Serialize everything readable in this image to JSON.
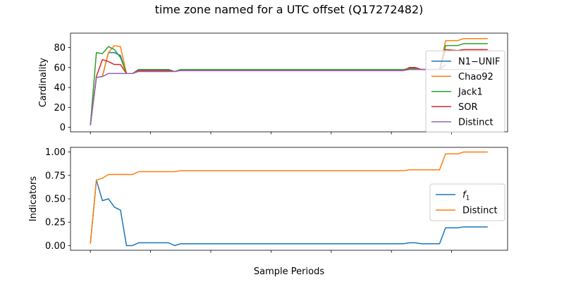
{
  "figure": {
    "title": "time zone named for a UTC offset (Q17272482)"
  },
  "chart_data": [
    {
      "type": "line",
      "ylabel": "Cardinality",
      "xlabel": "",
      "xlim": [
        -3.3,
        69.3
      ],
      "ylim": [
        -4.5,
        94.5
      ],
      "xticks": [
        0,
        10,
        20,
        30,
        40,
        50,
        60
      ],
      "yticks": [
        0,
        20,
        40,
        60,
        80
      ],
      "show_xtick_labels": false,
      "grid": false,
      "legend_position": "right",
      "series": [
        {
          "name": "N1−UNIF",
          "color": "#1f77b4",
          "points": [
            [
              0,
              2
            ],
            [
              1,
              50
            ],
            [
              2,
              51
            ],
            [
              3,
              75
            ],
            [
              4,
              75
            ],
            [
              5,
              72
            ],
            [
              6,
              54
            ],
            [
              7,
              54
            ],
            [
              8,
              57
            ],
            [
              9,
              57
            ],
            [
              13,
              57
            ],
            [
              14,
              56
            ],
            [
              15,
              57
            ],
            [
              52,
              57
            ],
            [
              53,
              59
            ],
            [
              54,
              59
            ],
            [
              55,
              58
            ],
            [
              58,
              58
            ],
            [
              59,
              63
            ]
          ]
        },
        {
          "name": "Chao92",
          "color": "#ff7f0e",
          "points": [
            [
              0,
              2
            ],
            [
              1,
              50
            ],
            [
              2,
              51
            ],
            [
              3,
              75
            ],
            [
              4,
              82
            ],
            [
              5,
              81
            ],
            [
              6,
              54
            ],
            [
              7,
              54
            ],
            [
              8,
              57
            ],
            [
              9,
              57
            ],
            [
              13,
              57
            ],
            [
              14,
              56
            ],
            [
              15,
              57
            ],
            [
              52,
              57
            ],
            [
              53,
              59
            ],
            [
              54,
              59
            ],
            [
              55,
              58
            ],
            [
              58,
              58
            ],
            [
              59,
              87
            ],
            [
              61,
              87
            ],
            [
              62,
              89
            ],
            [
              66,
              89
            ]
          ]
        },
        {
          "name": "Jack1",
          "color": "#2ca02c",
          "points": [
            [
              0,
              2
            ],
            [
              1,
              75
            ],
            [
              2,
              74
            ],
            [
              3,
              81
            ],
            [
              4,
              78
            ],
            [
              5,
              70
            ],
            [
              6,
              54
            ],
            [
              7,
              54
            ],
            [
              8,
              58
            ],
            [
              9,
              58
            ],
            [
              13,
              58
            ],
            [
              14,
              56
            ],
            [
              15,
              58
            ],
            [
              52,
              58
            ],
            [
              53,
              59
            ],
            [
              54,
              59
            ],
            [
              55,
              58
            ],
            [
              58,
              58
            ],
            [
              59,
              82
            ],
            [
              61,
              82
            ],
            [
              62,
              84
            ],
            [
              66,
              84
            ]
          ]
        },
        {
          "name": "SOR",
          "color": "#d62728",
          "points": [
            [
              0,
              2
            ],
            [
              1,
              51
            ],
            [
              2,
              68
            ],
            [
              3,
              66
            ],
            [
              4,
              63
            ],
            [
              5,
              63
            ],
            [
              6,
              54
            ],
            [
              7,
              54
            ],
            [
              8,
              57
            ],
            [
              9,
              57
            ],
            [
              13,
              57
            ],
            [
              14,
              56
            ],
            [
              15,
              57
            ],
            [
              52,
              57
            ],
            [
              53,
              60
            ],
            [
              54,
              60
            ],
            [
              55,
              58
            ],
            [
              58,
              58
            ],
            [
              59,
              78
            ],
            [
              61,
              77
            ],
            [
              62,
              78
            ],
            [
              66,
              78
            ]
          ]
        },
        {
          "name": "Distinct",
          "color": "#9467bd",
          "points": [
            [
              0,
              2
            ],
            [
              1,
              50
            ],
            [
              2,
              51
            ],
            [
              3,
              54
            ],
            [
              4,
              54
            ],
            [
              5,
              54
            ],
            [
              6,
              54
            ],
            [
              7,
              54
            ],
            [
              8,
              56
            ],
            [
              9,
              56
            ],
            [
              13,
              56
            ],
            [
              14,
              56
            ],
            [
              15,
              57
            ],
            [
              52,
              57
            ],
            [
              53,
              58
            ],
            [
              54,
              58
            ],
            [
              55,
              58
            ],
            [
              58,
              58
            ],
            [
              59,
              58
            ],
            [
              66,
              58
            ]
          ]
        }
      ]
    },
    {
      "type": "line",
      "ylabel": "Indicators",
      "xlabel": "Sample Periods",
      "xlim": [
        -3.3,
        69.3
      ],
      "ylim": [
        -0.05,
        1.05
      ],
      "xticks": [
        0,
        10,
        20,
        30,
        40,
        50,
        60
      ],
      "yticks": [
        0.0,
        0.25,
        0.5,
        0.75,
        1.0
      ],
      "show_xtick_labels": true,
      "grid": false,
      "legend_position": "center right",
      "series": [
        {
          "name": "f1",
          "color": "#1f77b4",
          "points": [
            [
              0,
              0.02
            ],
            [
              1,
              0.7
            ],
            [
              2,
              0.48
            ],
            [
              3,
              0.5
            ],
            [
              4,
              0.41
            ],
            [
              5,
              0.38
            ],
            [
              6,
              0.0
            ],
            [
              7,
              0.0
            ],
            [
              8,
              0.03
            ],
            [
              9,
              0.03
            ],
            [
              13,
              0.03
            ],
            [
              14,
              0.0
            ],
            [
              15,
              0.02
            ],
            [
              52,
              0.02
            ],
            [
              53,
              0.03
            ],
            [
              54,
              0.03
            ],
            [
              55,
              0.02
            ],
            [
              58,
              0.02
            ],
            [
              59,
              0.19
            ],
            [
              61,
              0.19
            ],
            [
              62,
              0.2
            ],
            [
              66,
              0.2
            ]
          ]
        },
        {
          "name": "Distinct",
          "color": "#ff7f0e",
          "points": [
            [
              0,
              0.02
            ],
            [
              1,
              0.7
            ],
            [
              2,
              0.72
            ],
            [
              3,
              0.76
            ],
            [
              4,
              0.76
            ],
            [
              5,
              0.76
            ],
            [
              6,
              0.76
            ],
            [
              7,
              0.76
            ],
            [
              8,
              0.79
            ],
            [
              9,
              0.79
            ],
            [
              13,
              0.79
            ],
            [
              14,
              0.79
            ],
            [
              15,
              0.8
            ],
            [
              52,
              0.8
            ],
            [
              53,
              0.81
            ],
            [
              54,
              0.81
            ],
            [
              55,
              0.81
            ],
            [
              58,
              0.81
            ],
            [
              59,
              0.98
            ],
            [
              61,
              0.98
            ],
            [
              62,
              1.0
            ],
            [
              66,
              1.0
            ]
          ]
        }
      ]
    }
  ]
}
